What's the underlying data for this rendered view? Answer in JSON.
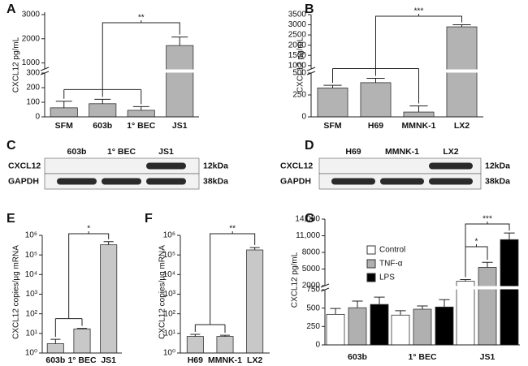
{
  "chart_data": [
    {
      "type": "bar",
      "panel": "A",
      "ylabel": "CXCL12 pg/mL",
      "categories": [
        "SFM",
        "603b",
        "1° BEC",
        "JS1"
      ],
      "values": [
        62,
        90,
        45,
        1720
      ],
      "errors": [
        45,
        30,
        25,
        350
      ],
      "color": "#b3b3b3",
      "segments": [
        {
          "ylim": [
            0,
            300
          ],
          "yticks": [
            0,
            100,
            200,
            300
          ]
        },
        {
          "ylim": [
            750,
            3100
          ],
          "yticks": [
            1000,
            2000,
            3000
          ]
        }
      ],
      "annotations": [
        "**"
      ]
    },
    {
      "type": "bar",
      "panel": "B",
      "ylabel": "CXCL12 pg/mL",
      "categories": [
        "SFM",
        "H69",
        "MMNK-1",
        "LX2"
      ],
      "values": [
        330,
        390,
        55,
        2900
      ],
      "errors": [
        30,
        50,
        70,
        100
      ],
      "color": "#b3b3b3",
      "segments": [
        {
          "ylim": [
            0,
            500
          ],
          "yticks": [
            0,
            250,
            500
          ]
        },
        {
          "ylim": [
            830,
            3500
          ],
          "yticks": [
            1000,
            1500,
            2000,
            2500,
            3000,
            3500
          ]
        }
      ],
      "annotations": [
        "***"
      ]
    },
    {
      "type": "blot",
      "panel": "C",
      "lanes": [
        "603b",
        "1° BEC",
        "JS1"
      ],
      "rows": [
        {
          "name": "CXCL12",
          "size": "12kDa"
        },
        {
          "name": "GAPDH",
          "size": "38kDa"
        }
      ]
    },
    {
      "type": "blot",
      "panel": "D",
      "lanes": [
        "H69",
        "MMNK-1",
        "LX2"
      ],
      "rows": [
        {
          "name": "CXCL12",
          "size": "12kDa"
        },
        {
          "name": "GAPDH",
          "size": "38kDa"
        }
      ]
    },
    {
      "type": "bar",
      "panel": "E",
      "ylabel": "CXCL12 copies/µg mRNA",
      "log_scale": true,
      "categories": [
        "603b",
        "1° BEC",
        "JS1"
      ],
      "values": [
        3,
        17,
        330000
      ],
      "errors": [
        2,
        1,
        150000
      ],
      "color": "#c8c8c8",
      "ylim": [
        1,
        1000000
      ],
      "yticks": [
        {
          "value": 1,
          "label": "10⁰"
        },
        {
          "value": 10,
          "label": "10¹"
        },
        {
          "value": 100,
          "label": "10²"
        },
        {
          "value": 1000,
          "label": "10³"
        },
        {
          "value": 10000,
          "label": "10⁴"
        },
        {
          "value": 100000,
          "label": "10⁵"
        },
        {
          "value": 1000000,
          "label": "10⁶"
        }
      ],
      "annotations": [
        "*"
      ]
    },
    {
      "type": "bar",
      "panel": "F",
      "ylabel": "CXCL12 copies/µg mRNA",
      "log_scale": true,
      "categories": [
        "H69",
        "MMNK-1",
        "LX2"
      ],
      "values": [
        7,
        7,
        180000
      ],
      "errors": [
        2,
        1,
        60000
      ],
      "color": "#c8c8c8",
      "ylim": [
        1,
        1000000
      ],
      "yticks": [
        {
          "value": 1,
          "label": "10⁰"
        },
        {
          "value": 10,
          "label": "10¹"
        },
        {
          "value": 100,
          "label": "10²"
        },
        {
          "value": 1000,
          "label": "10³"
        },
        {
          "value": 10000,
          "label": "10⁴"
        },
        {
          "value": 100000,
          "label": "10⁵"
        },
        {
          "value": 1000000,
          "label": "10⁶"
        }
      ],
      "annotations": [
        "**"
      ]
    },
    {
      "type": "bar",
      "panel": "G",
      "ylabel": "CXCL12 pg/mL",
      "categories": [
        "603b",
        "1° BEC",
        "JS1"
      ],
      "series": [
        {
          "name": "Control",
          "color": "#ffffff",
          "values": [
            415,
            405,
            2800
          ],
          "errors": [
            80,
            60,
            300
          ]
        },
        {
          "name": "TNF-α",
          "color": "#b0b0b0",
          "values": [
            505,
            485,
            5300
          ],
          "errors": [
            90,
            45,
            900
          ]
        },
        {
          "name": "LPS",
          "color": "#000000",
          "values": [
            550,
            515,
            10300
          ],
          "errors": [
            100,
            100,
            1200
          ]
        }
      ],
      "segments": [
        {
          "ylim": [
            0,
            750
          ],
          "yticks": [
            0,
            250,
            500,
            750
          ]
        },
        {
          "ylim": [
            2000,
            14000
          ],
          "yticks": [
            2000,
            5000,
            8000,
            {
              "value": 11000,
              "label": "11,000"
            },
            {
              "value": 14000,
              "label": "14,000"
            }
          ]
        }
      ],
      "annotations": [
        "*",
        "***"
      ]
    }
  ]
}
